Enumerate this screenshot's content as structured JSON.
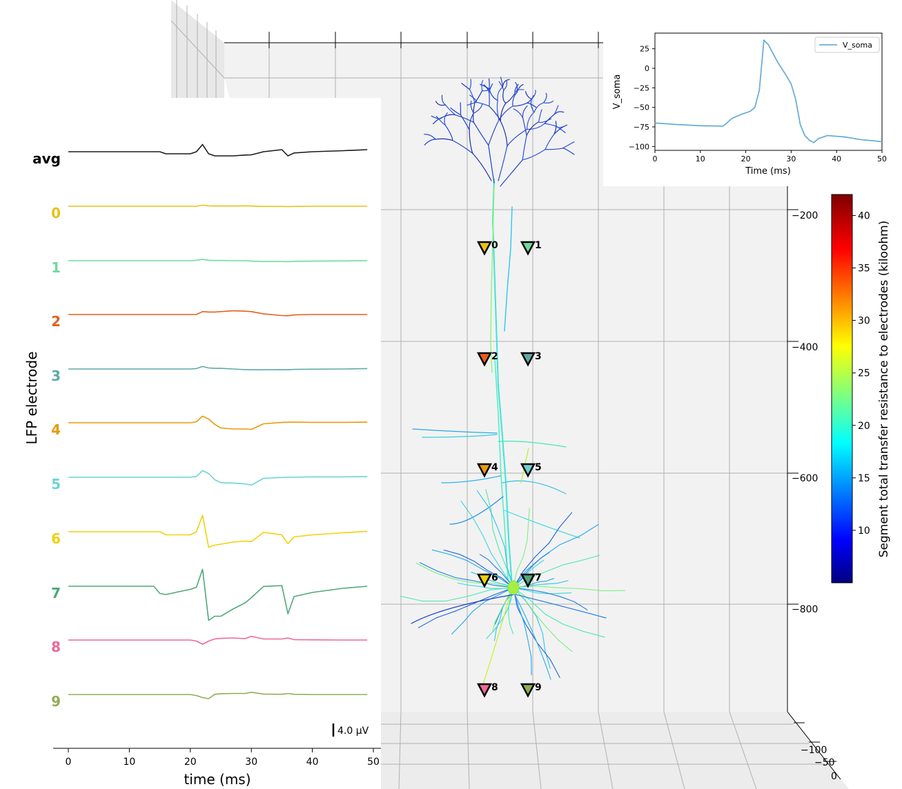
{
  "colors": {
    "pane": "#f2f2f2",
    "grid": "#b0b0b0",
    "axis": "#000000",
    "vsoma_line": "#6baed6",
    "avg_trace": "#000000"
  },
  "colormap": "jet",
  "chart_data": [
    {
      "type": "line",
      "name": "lfp_traces",
      "xlabel": "time (ms)",
      "ylabel": "LFP electrode",
      "xlim": [
        0,
        50
      ],
      "xticks": [
        0,
        10,
        20,
        30,
        40,
        50
      ],
      "xtick_labels": [
        "0",
        "10",
        "20",
        "30",
        "40",
        "50"
      ],
      "scalebar_label": "4.0 μV",
      "grid": false,
      "time_ms": [
        0,
        14,
        15,
        16,
        20,
        21,
        22,
        23,
        24,
        25,
        27,
        29,
        30,
        32,
        35,
        36,
        37,
        40,
        45,
        49
      ],
      "series": [
        {
          "name": "avg",
          "color": "#1a1a1a",
          "values": [
            0,
            0,
            0,
            -1,
            -1,
            0,
            3.5,
            -1,
            -2,
            -2,
            -2,
            -1.6,
            -1.5,
            0,
            1,
            -2,
            -0.6,
            0,
            0.5,
            1
          ]
        },
        {
          "name": "0",
          "color": "#e8c21a",
          "values": [
            0,
            0,
            0,
            0,
            0,
            0,
            0.5,
            0.2,
            0.1,
            0.1,
            0.1,
            0.2,
            0.1,
            -0.1,
            -0.1,
            -0.2,
            -0.1,
            0,
            0,
            0
          ]
        },
        {
          "name": "1",
          "color": "#6edb9c",
          "values": [
            0,
            0,
            0,
            0,
            0,
            0.2,
            0.7,
            0.2,
            0.1,
            0.1,
            0,
            0,
            -0.2,
            -0.4,
            -0.4,
            -0.5,
            -0.3,
            -0.2,
            -0.1,
            0
          ]
        },
        {
          "name": "2",
          "color": "#e65f1e",
          "values": [
            0,
            0,
            0,
            0,
            0,
            0,
            1.4,
            1.2,
            1.2,
            1.4,
            1.8,
            1.6,
            1.4,
            0.3,
            -0.5,
            -0.6,
            -0.2,
            0,
            0,
            0
          ]
        },
        {
          "name": "3",
          "color": "#5eaaa8",
          "values": [
            0,
            0,
            0,
            0,
            0,
            0.2,
            1.2,
            0.5,
            0.3,
            0.3,
            0,
            -0.3,
            -0.4,
            -0.4,
            -0.3,
            -0.4,
            -0.2,
            -0.1,
            0,
            0.2
          ]
        },
        {
          "name": "4",
          "color": "#e89a0c",
          "values": [
            0,
            0,
            0,
            0,
            0,
            0.5,
            3.2,
            1.8,
            -0.8,
            -2.5,
            -3.0,
            -3.0,
            -3.2,
            -0.5,
            0.2,
            0.3,
            0.3,
            0.2,
            0.2,
            0.3
          ]
        },
        {
          "name": "5",
          "color": "#6ad4d4",
          "values": [
            0,
            0,
            0,
            0,
            0,
            0.4,
            3.2,
            1.8,
            -1.2,
            -2.6,
            -2.8,
            -3.2,
            -3.8,
            -0.5,
            -0.1,
            0,
            0,
            0.2,
            0.2,
            0.3
          ]
        },
        {
          "name": "6",
          "color": "#f2d00c",
          "values": [
            0,
            0,
            0,
            -1.5,
            -1.5,
            0,
            8,
            -7.5,
            -6.5,
            -6,
            -5,
            -4.5,
            -4.8,
            -0.3,
            -1.5,
            -5.8,
            -2.5,
            -1.5,
            -0.5,
            0.2
          ]
        },
        {
          "name": "7",
          "color": "#4fa878",
          "values": [
            0,
            0,
            -3.5,
            -4,
            -1.5,
            -0.5,
            8.2,
            -16.5,
            -14.5,
            -14.5,
            -11,
            -8,
            -5.5,
            -0.1,
            0.3,
            -13.3,
            -5,
            -3,
            -1,
            0
          ]
        },
        {
          "name": "8",
          "color": "#f0679a",
          "values": [
            0,
            0,
            0,
            0,
            0,
            -0.5,
            -2.0,
            -0.5,
            0.5,
            0.8,
            1.0,
            0.7,
            1.8,
            0.5,
            0.5,
            1.0,
            0.2,
            0.1,
            0,
            0
          ]
        },
        {
          "name": "9",
          "color": "#8fae56",
          "values": [
            0,
            0,
            0,
            0,
            0,
            -0.5,
            -1.5,
            -2.0,
            0.1,
            0.4,
            0.5,
            0.5,
            1.1,
            0.2,
            0.1,
            0.5,
            0.1,
            0,
            0,
            0
          ]
        }
      ]
    },
    {
      "type": "line",
      "name": "v_soma",
      "xlabel": "Time (ms)",
      "ylabel": "V_soma",
      "xlim": [
        0,
        50
      ],
      "ylim": [
        -105,
        45
      ],
      "xticks": [
        0,
        10,
        20,
        30,
        40,
        50
      ],
      "yticks": [
        25,
        0,
        -25,
        -50,
        -75,
        -100
      ],
      "ytick_labels": [
        "25",
        "0",
        "−25",
        "−50",
        "−75",
        "−100"
      ],
      "legend_position": "top-right",
      "grid": false,
      "series": [
        {
          "name": "V_soma",
          "x": [
            0,
            5,
            10,
            15,
            17,
            19,
            21,
            22,
            23,
            24,
            25,
            27,
            29,
            30,
            31,
            32,
            33,
            34,
            35,
            36,
            38,
            40,
            42,
            45,
            50
          ],
          "values": [
            -70,
            -72,
            -73.5,
            -74,
            -64,
            -59,
            -55,
            -50,
            -28,
            36,
            30,
            8,
            -10,
            -20,
            -40,
            -72,
            -86,
            -92,
            -95,
            -90,
            -86,
            -87,
            -88,
            -91,
            -94
          ]
        }
      ]
    },
    {
      "type": "scatter",
      "name": "morphology_3d",
      "zticks": [
        -200,
        -400,
        -600,
        -800
      ],
      "ztick_labels": [
        "−200",
        "−400",
        "−600",
        "−800"
      ],
      "ytick_labels_visible": [
        "−100",
        "−50",
        "0"
      ],
      "electrodes": [
        {
          "label": "0",
          "color": "#e8c21a"
        },
        {
          "label": "1",
          "color": "#6edb9c"
        },
        {
          "label": "2",
          "color": "#e65f1e"
        },
        {
          "label": "3",
          "color": "#5eaaa8"
        },
        {
          "label": "4",
          "color": "#e89a0c"
        },
        {
          "label": "5",
          "color": "#6ad4d4"
        },
        {
          "label": "6",
          "color": "#f2d00c"
        },
        {
          "label": "7",
          "color": "#4fa878"
        },
        {
          "label": "8",
          "color": "#f0679a"
        },
        {
          "label": "9",
          "color": "#8fae56"
        }
      ],
      "colorbar": {
        "label": "Segment total transfer resistance to electrodes (kiloohm)",
        "min": 5,
        "max": 42,
        "ticks": [
          10,
          15,
          20,
          25,
          30,
          35,
          40
        ],
        "tick_labels": [
          "10",
          "15",
          "20",
          "25",
          "30",
          "35",
          "40"
        ]
      }
    }
  ]
}
